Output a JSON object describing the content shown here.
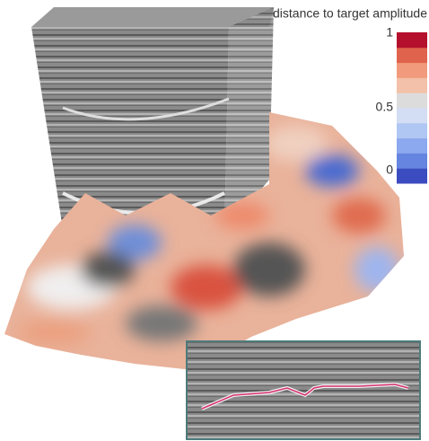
{
  "colorbar": {
    "title": "distance to target amplitude",
    "range": [
      0,
      1
    ],
    "ticks": [
      0,
      0.5,
      1
    ],
    "colors": [
      "#3b4cc0",
      "#6685e0",
      "#8ca8ee",
      "#b0c6f3",
      "#d3ddf3",
      "#dcdcdc",
      "#f3c1a9",
      "#f29a7c",
      "#e0634d",
      "#b40f2c"
    ]
  }
}
